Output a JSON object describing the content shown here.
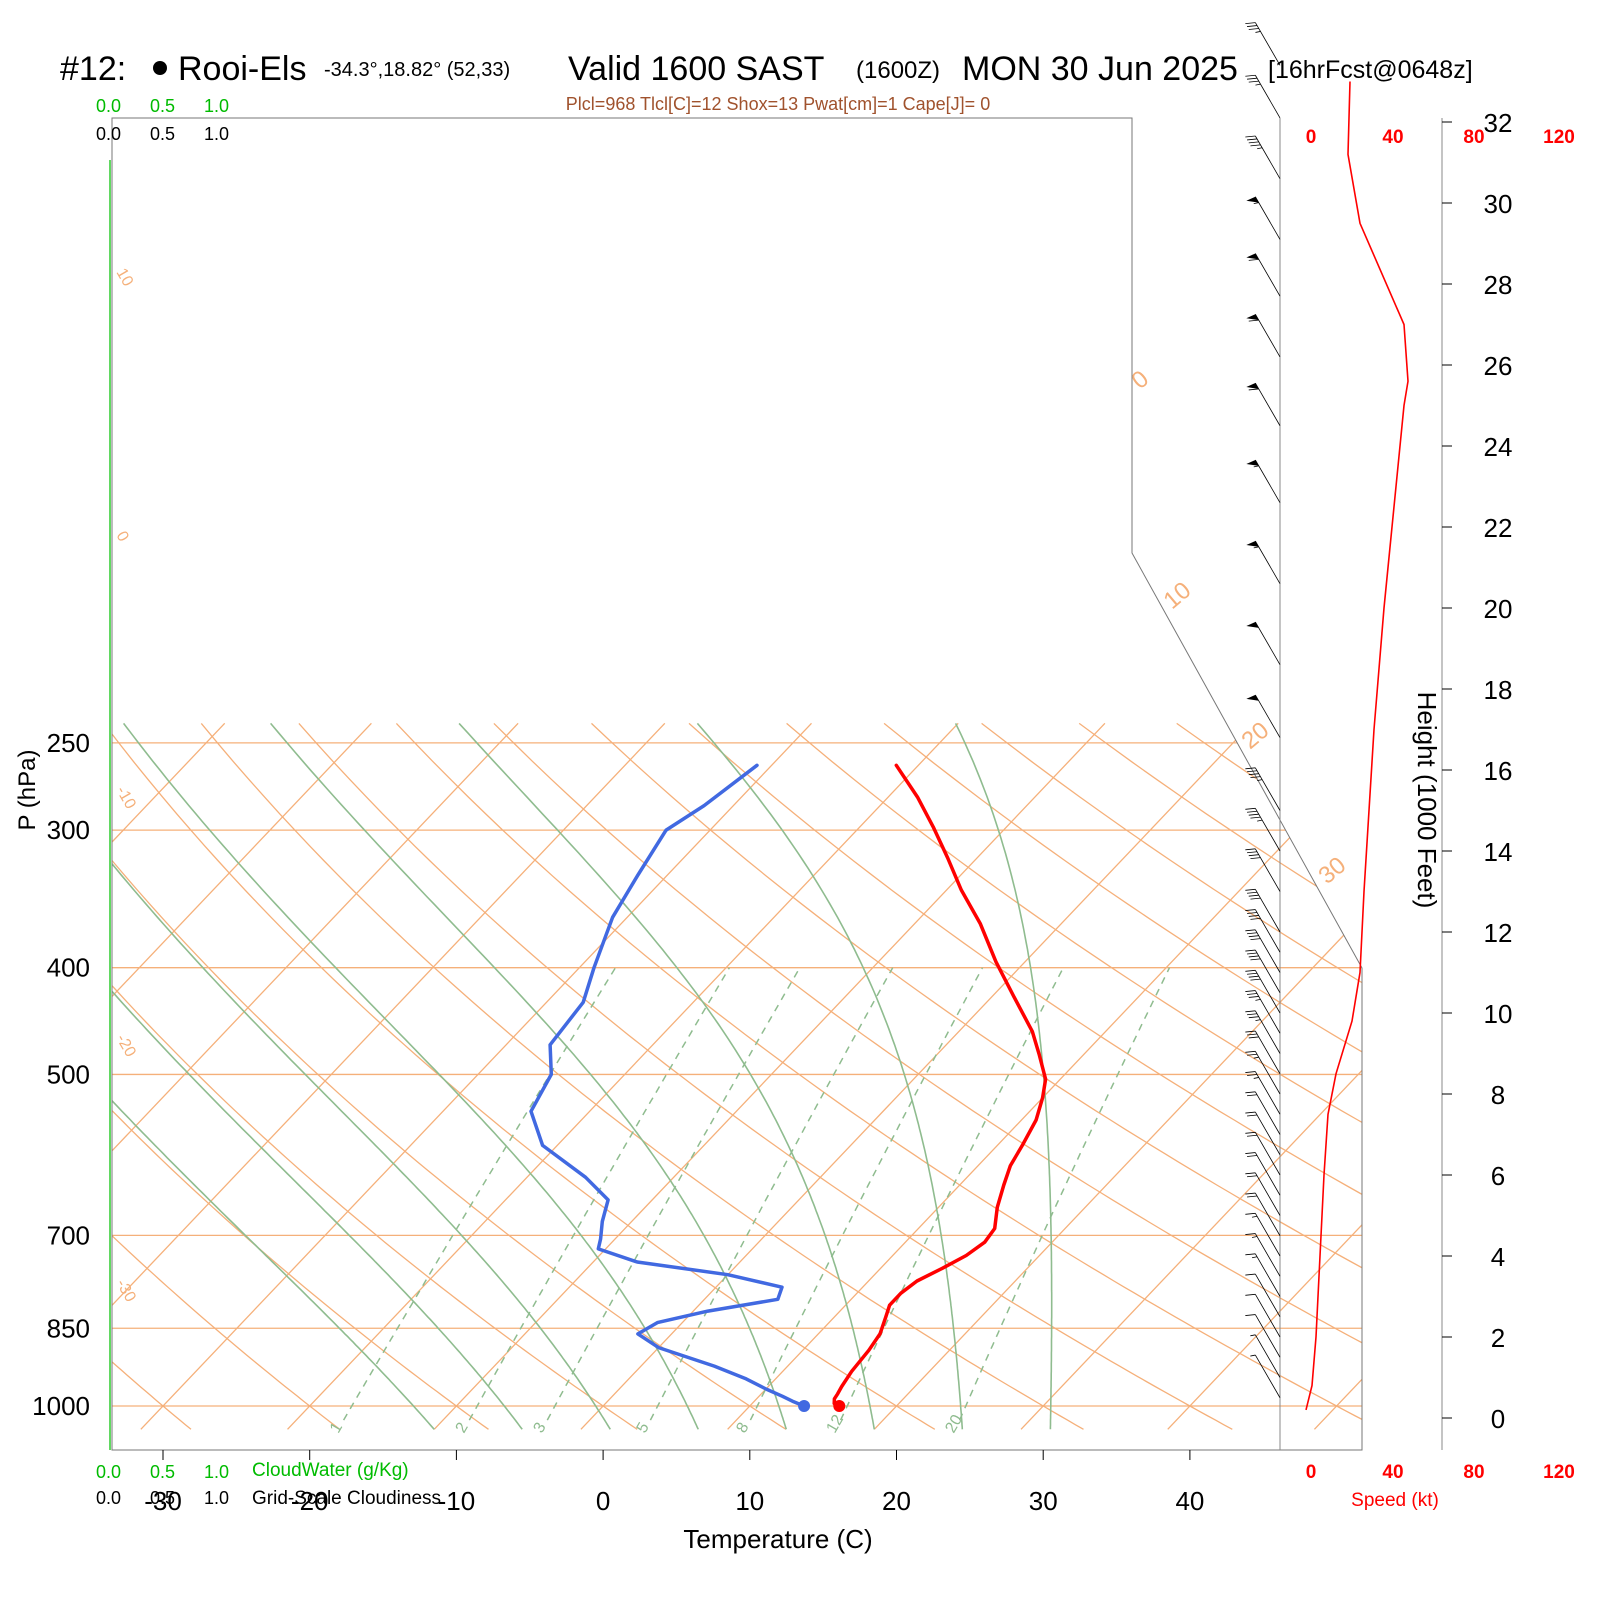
{
  "title": {
    "station_num": "#12:",
    "station_name": "Rooi-Els",
    "coords": "-34.3°,18.82° (52,33)",
    "valid": "Valid 1600 SAST",
    "zulu": "(1600Z)",
    "date": "MON 30 Jun 2025",
    "fcst": "[16hrFcst@0648z]"
  },
  "indices": "Plcl=968 Tlcl[C]=12 Shox=13 Pwat[cm]=1 Cape[J]= 0",
  "scales": {
    "cloudwater_ticks": [
      "0.0",
      "0.5",
      "1.0"
    ],
    "cloudiness_ticks": [
      "0.0",
      "0.5",
      "1.0"
    ],
    "cloudwater_label": "CloudWater (g/Kg)",
    "cloudiness_label": "Grid-Scale Cloudiness",
    "speed_ticks": [
      "0",
      "40",
      "80",
      "120"
    ],
    "speed_label": "Speed (kt)"
  },
  "colors": {
    "temperature": "#ff0000",
    "dewpoint": "#4169e1",
    "isotherm": "#f5b07a",
    "dry_adiabat": "#f5b07a",
    "moist_adiabat": "#8fbc8f",
    "mixing_ratio": "#8fbc8f",
    "cloudwater": "#00bb00",
    "speed": "#ff0000"
  },
  "chart_data": [
    {
      "type": "line",
      "title": "",
      "xlabel": "Temperature (C)",
      "ylabel": "P (hPa)",
      "x_ticks": [
        -30,
        -20,
        -10,
        0,
        10,
        20,
        30,
        40
      ],
      "y_ticks": [
        250,
        300,
        400,
        500,
        700,
        850,
        1000
      ],
      "y_scale": "log",
      "isotherm_labels": [
        "10",
        "0",
        "-10",
        "-20",
        "-30",
        "0",
        "10",
        "20",
        "30"
      ],
      "mixing_ratio_labels": [
        "1",
        "2",
        "3",
        "5",
        "8",
        "12",
        "20"
      ],
      "series": [
        {
          "data_key": "temperature",
          "points": [
            [
              16.1,
              1000
            ],
            [
              15.6,
              995
            ],
            [
              15.3,
              985
            ],
            [
              15.2,
              975
            ],
            [
              15.0,
              960
            ],
            [
              14.7,
              930
            ],
            [
              14.5,
              890
            ],
            [
              14.2,
              860
            ],
            [
              13.5,
              830
            ],
            [
              13.0,
              810
            ],
            [
              13.0,
              790
            ],
            [
              13.3,
              770
            ],
            [
              14.2,
              750
            ],
            [
              15.0,
              730
            ],
            [
              15.4,
              710
            ],
            [
              15.2,
              690
            ],
            [
              14.0,
              660
            ],
            [
              13.0,
              630
            ],
            [
              12.2,
              605
            ],
            [
              11.7,
              580
            ],
            [
              11.0,
              550
            ],
            [
              10.0,
              525
            ],
            [
              9.0,
              505
            ],
            [
              7.0,
              480
            ],
            [
              5.0,
              457
            ],
            [
              1.5,
              425
            ],
            [
              -2.0,
              395
            ],
            [
              -5.5,
              365
            ],
            [
              -9.0,
              340
            ],
            [
              -12.0,
              318
            ],
            [
              -15.0,
              298
            ],
            [
              -18.0,
              280
            ],
            [
              -21.5,
              262
            ]
          ]
        },
        {
          "data_key": "dewpoint",
          "points": [
            [
              13.7,
              1000
            ],
            [
              12.6,
              990
            ],
            [
              11.6,
              980
            ],
            [
              10.0,
              965
            ],
            [
              8.0,
              945
            ],
            [
              5.0,
              920
            ],
            [
              0.0,
              885
            ],
            [
              -2.3,
              860
            ],
            [
              -1.7,
              840
            ],
            [
              1.0,
              820
            ],
            [
              5.0,
              800
            ],
            [
              4.5,
              780
            ],
            [
              0.0,
              760
            ],
            [
              -7.0,
              740
            ],
            [
              -10.5,
              720
            ],
            [
              -11.0,
              705
            ],
            [
              -12.0,
              680
            ],
            [
              -13.0,
              650
            ],
            [
              -16.0,
              620
            ],
            [
              -21.0,
              580
            ],
            [
              -24.0,
              540
            ],
            [
              -25.0,
              500
            ],
            [
              -27.0,
              470
            ],
            [
              -27.5,
              430
            ],
            [
              -29.0,
              400
            ],
            [
              -31.0,
              360
            ],
            [
              -32.0,
              330
            ],
            [
              -33.0,
              300
            ],
            [
              -32.0,
              285
            ],
            [
              -31.0,
              262
            ]
          ]
        }
      ],
      "surface_markers": [
        {
          "data_key": "temperature",
          "value": 16.1,
          "p": 1000
        },
        {
          "data_key": "dewpoint",
          "value": 13.7,
          "p": 1000
        }
      ]
    },
    {
      "type": "line",
      "title": "",
      "xlabel": "Speed (kt)",
      "ylabel": "Height (1000 Feet)",
      "x_ticks": [
        0,
        40,
        80,
        120
      ],
      "y_ticks": [
        0,
        2,
        4,
        6,
        8,
        10,
        12,
        14,
        16,
        18,
        20,
        22,
        24,
        26,
        28,
        30,
        32
      ],
      "series": [
        {
          "data_key": "speed",
          "points": [
            [
              13,
              0.2
            ],
            [
              16,
              0.8
            ],
            [
              18,
              2
            ],
            [
              20,
              4
            ],
            [
              22,
              6
            ],
            [
              24,
              7.5
            ],
            [
              28,
              8.5
            ],
            [
              36,
              9.8
            ],
            [
              40,
              11
            ],
            [
              42,
              13
            ],
            [
              47,
              17
            ],
            [
              52,
              20
            ],
            [
              58,
              23
            ],
            [
              62,
              25
            ],
            [
              64,
              25.6
            ],
            [
              62,
              27
            ],
            [
              40,
              29.5
            ],
            [
              34,
              31.2
            ],
            [
              35,
              33
            ]
          ]
        }
      ],
      "wind_barbs": [
        {
          "height_kft": 0.5,
          "speed_kt": 5
        },
        {
          "height_kft": 1,
          "speed_kt": 5
        },
        {
          "height_kft": 1.5,
          "speed_kt": 10
        },
        {
          "height_kft": 2,
          "speed_kt": 10
        },
        {
          "height_kft": 2.5,
          "speed_kt": 10
        },
        {
          "height_kft": 3,
          "speed_kt": 15
        },
        {
          "height_kft": 3.5,
          "speed_kt": 15
        },
        {
          "height_kft": 4,
          "speed_kt": 15
        },
        {
          "height_kft": 4.5,
          "speed_kt": 20
        },
        {
          "height_kft": 5,
          "speed_kt": 20
        },
        {
          "height_kft": 5.5,
          "speed_kt": 20
        },
        {
          "height_kft": 6,
          "speed_kt": 20
        },
        {
          "height_kft": 6.5,
          "speed_kt": 20
        },
        {
          "height_kft": 7,
          "speed_kt": 20
        },
        {
          "height_kft": 7.5,
          "speed_kt": 25
        },
        {
          "height_kft": 8,
          "speed_kt": 25
        },
        {
          "height_kft": 8.5,
          "speed_kt": 30
        },
        {
          "height_kft": 9,
          "speed_kt": 35
        },
        {
          "height_kft": 9.5,
          "speed_kt": 35
        },
        {
          "height_kft": 10,
          "speed_kt": 40
        },
        {
          "height_kft": 10.5,
          "speed_kt": 40
        },
        {
          "height_kft": 11,
          "speed_kt": 40
        },
        {
          "height_kft": 11.5,
          "speed_kt": 40
        },
        {
          "height_kft": 12,
          "speed_kt": 40
        },
        {
          "height_kft": 13,
          "speed_kt": 40
        },
        {
          "height_kft": 14,
          "speed_kt": 45
        },
        {
          "height_kft": 15,
          "speed_kt": 45
        },
        {
          "height_kft": 16.8,
          "speed_kt": 50
        },
        {
          "height_kft": 18.6,
          "speed_kt": 50
        },
        {
          "height_kft": 20.6,
          "speed_kt": 55
        },
        {
          "height_kft": 22.6,
          "speed_kt": 55
        },
        {
          "height_kft": 24.5,
          "speed_kt": 60
        },
        {
          "height_kft": 26.2,
          "speed_kt": 60
        },
        {
          "height_kft": 27.7,
          "speed_kt": 60
        },
        {
          "height_kft": 29.1,
          "speed_kt": 55
        },
        {
          "height_kft": 30.6,
          "speed_kt": 45
        },
        {
          "height_kft": 32.1,
          "speed_kt": 35
        },
        {
          "height_kft": 33.4,
          "speed_kt": 35
        }
      ]
    }
  ]
}
